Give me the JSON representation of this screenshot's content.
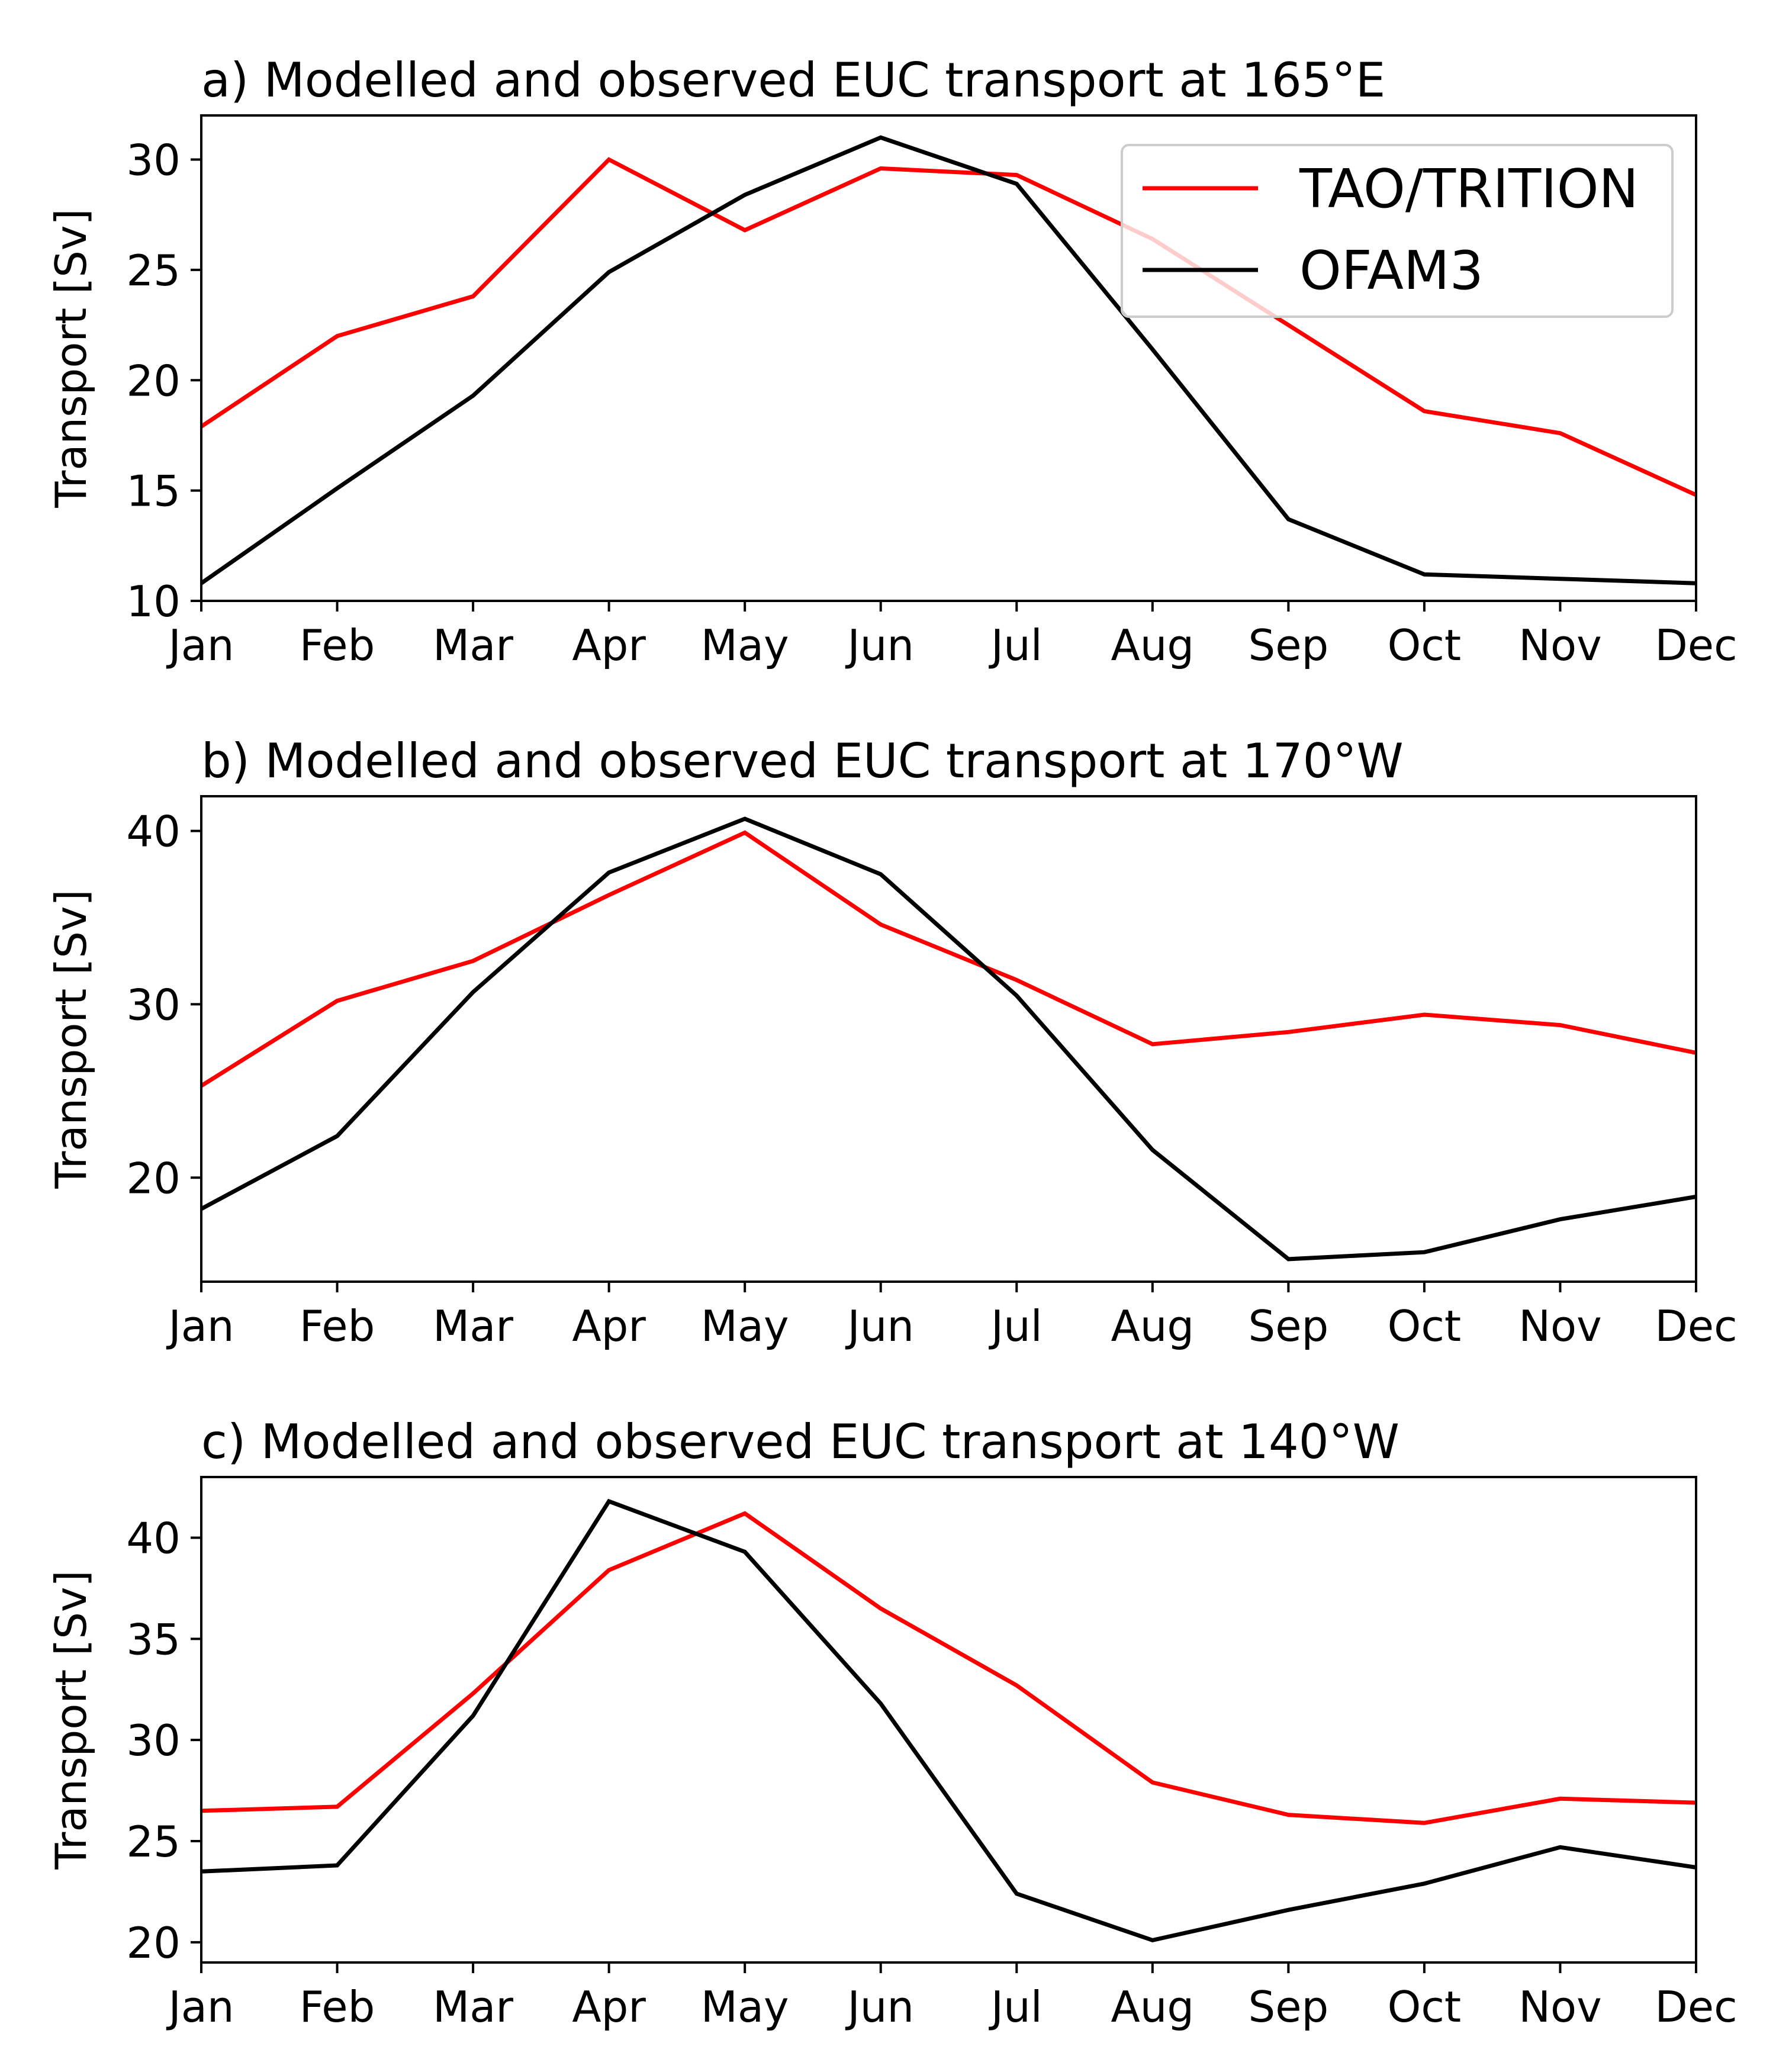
{
  "legend": {
    "placement": "top-right",
    "shown_in_panel": 0,
    "entries": [
      {
        "label": "TAO/TRITION",
        "color": "#ff0000"
      },
      {
        "label": "OFAM3",
        "color": "#000000"
      }
    ]
  },
  "chart_data": [
    {
      "type": "line",
      "title": "a) Modelled and observed EUC transport at 165°E",
      "xlabel": "",
      "ylabel": "Transport [Sv]",
      "categories": [
        "Jan",
        "Feb",
        "Mar",
        "Apr",
        "May",
        "Jun",
        "Jul",
        "Aug",
        "Sep",
        "Oct",
        "Nov",
        "Dec"
      ],
      "ylim": [
        10,
        32
      ],
      "yticks": [
        10,
        15,
        20,
        25,
        30
      ],
      "grid": false,
      "series": [
        {
          "name": "TAO/TRITION",
          "color": "#ff0000",
          "values": [
            17.9,
            22.0,
            23.8,
            30.0,
            26.8,
            29.6,
            29.3,
            26.4,
            22.5,
            18.6,
            17.6,
            14.8
          ]
        },
        {
          "name": "OFAM3",
          "color": "#000000",
          "values": [
            10.8,
            15.1,
            19.3,
            24.9,
            28.4,
            31.0,
            28.9,
            21.4,
            13.7,
            11.2,
            11.0,
            10.8
          ]
        }
      ]
    },
    {
      "type": "line",
      "title": "b) Modelled and observed EUC transport at 170°W",
      "xlabel": "",
      "ylabel": "Transport [Sv]",
      "categories": [
        "Jan",
        "Feb",
        "Mar",
        "Apr",
        "May",
        "Jun",
        "Jul",
        "Aug",
        "Sep",
        "Oct",
        "Nov",
        "Dec"
      ],
      "ylim": [
        14,
        42
      ],
      "yticks": [
        20,
        30,
        40
      ],
      "grid": false,
      "series": [
        {
          "name": "TAO/TRITION",
          "color": "#ff0000",
          "values": [
            25.3,
            30.2,
            32.5,
            36.3,
            39.9,
            34.6,
            31.4,
            27.7,
            28.4,
            29.4,
            28.8,
            27.2
          ]
        },
        {
          "name": "OFAM3",
          "color": "#000000",
          "values": [
            18.2,
            22.4,
            30.7,
            37.6,
            40.7,
            37.5,
            30.5,
            21.6,
            15.3,
            15.7,
            17.6,
            18.9
          ]
        }
      ]
    },
    {
      "type": "line",
      "title": "c) Modelled and observed EUC transport at 140°W",
      "xlabel": "",
      "ylabel": "Transport [Sv]",
      "categories": [
        "Jan",
        "Feb",
        "Mar",
        "Apr",
        "May",
        "Jun",
        "Jul",
        "Aug",
        "Sep",
        "Oct",
        "Nov",
        "Dec"
      ],
      "ylim": [
        19,
        43
      ],
      "yticks": [
        20,
        25,
        30,
        35,
        40
      ],
      "grid": false,
      "series": [
        {
          "name": "TAO/TRITION",
          "color": "#ff0000",
          "values": [
            26.5,
            26.7,
            32.3,
            38.4,
            41.2,
            36.5,
            32.7,
            27.9,
            26.3,
            25.9,
            27.1,
            26.9
          ]
        },
        {
          "name": "OFAM3",
          "color": "#000000",
          "values": [
            23.5,
            23.8,
            31.2,
            41.8,
            39.3,
            31.8,
            22.4,
            20.1,
            21.6,
            22.9,
            24.7,
            23.7
          ]
        }
      ]
    }
  ]
}
